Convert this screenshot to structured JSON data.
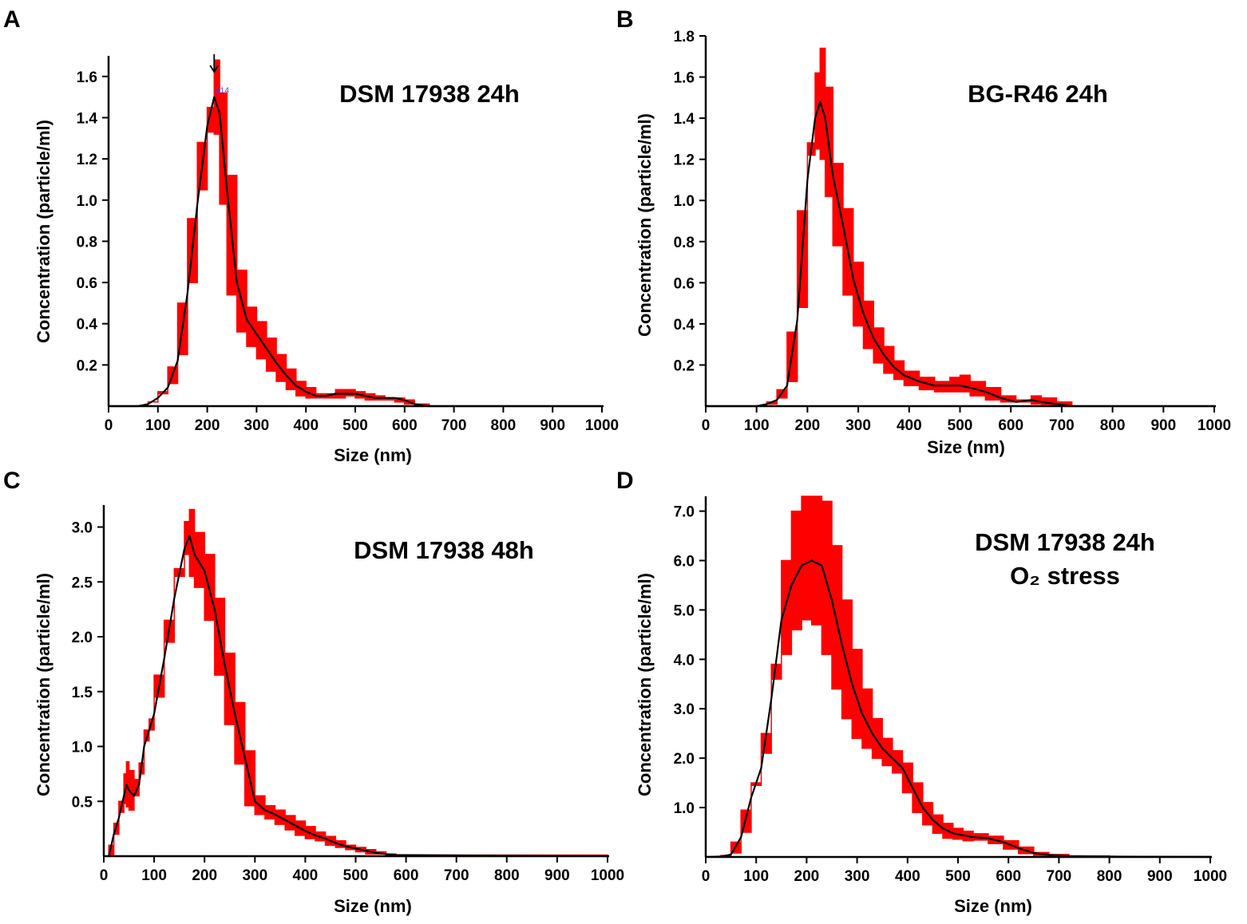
{
  "chart_data": [
    {
      "panel": "A",
      "type": "area",
      "title": "DSM 17938 24h",
      "title_sub": "",
      "xlabel": "Size (nm)",
      "ylabel": "Concentration (particle/ml)",
      "xlim": [
        0,
        1000
      ],
      "ylim": [
        0,
        1.7
      ],
      "xticks": [
        0,
        100,
        200,
        300,
        400,
        500,
        600,
        700,
        800,
        900,
        1000
      ],
      "yticks": [
        0.2,
        0.4,
        0.6,
        0.8,
        1.0,
        1.2,
        1.4,
        1.6
      ],
      "ytick_labels": [
        "0.2",
        "0.4",
        "0.6",
        "0.8",
        "1.0",
        "1.2",
        "1.4",
        "1.6"
      ],
      "peak_annotation": "214",
      "peak_x": 214,
      "series": [
        {
          "name": "mean",
          "x": [
            0,
            60,
            80,
            100,
            120,
            140,
            160,
            180,
            200,
            214,
            225,
            240,
            260,
            280,
            300,
            320,
            340,
            360,
            380,
            400,
            420,
            440,
            460,
            480,
            500,
            520,
            540,
            560,
            580,
            600,
            620,
            650,
            1000
          ],
          "y": [
            0,
            0,
            0.01,
            0.04,
            0.09,
            0.22,
            0.55,
            0.98,
            1.36,
            1.5,
            1.42,
            1.05,
            0.6,
            0.42,
            0.35,
            0.28,
            0.21,
            0.15,
            0.1,
            0.07,
            0.05,
            0.05,
            0.06,
            0.06,
            0.06,
            0.05,
            0.04,
            0.04,
            0.04,
            0.03,
            0.01,
            0,
            0
          ]
        },
        {
          "name": "error-upper",
          "x": [
            0,
            60,
            80,
            100,
            120,
            140,
            160,
            180,
            200,
            214,
            225,
            240,
            260,
            280,
            300,
            320,
            340,
            360,
            380,
            400,
            420,
            440,
            460,
            480,
            500,
            520,
            540,
            560,
            580,
            600,
            620,
            650,
            1000
          ],
          "y": [
            0,
            0,
            0.02,
            0.06,
            0.11,
            0.25,
            0.6,
            1.05,
            1.45,
            1.68,
            1.52,
            1.12,
            0.66,
            0.48,
            0.41,
            0.33,
            0.25,
            0.18,
            0.12,
            0.09,
            0.06,
            0.06,
            0.08,
            0.08,
            0.07,
            0.06,
            0.05,
            0.04,
            0.04,
            0.03,
            0.01,
            0,
            0
          ]
        },
        {
          "name": "error-lower",
          "x": [
            0,
            60,
            80,
            100,
            120,
            140,
            160,
            180,
            200,
            214,
            225,
            240,
            260,
            280,
            300,
            320,
            340,
            360,
            380,
            400,
            420,
            440,
            460,
            480,
            500,
            520,
            540,
            560,
            580,
            600,
            620,
            650,
            1000
          ],
          "y": [
            0,
            0,
            0,
            0.02,
            0.07,
            0.19,
            0.5,
            0.91,
            1.28,
            1.33,
            1.32,
            0.98,
            0.54,
            0.36,
            0.29,
            0.23,
            0.17,
            0.12,
            0.08,
            0.05,
            0.04,
            0.04,
            0.04,
            0.04,
            0.05,
            0.04,
            0.03,
            0.03,
            0.03,
            0.02,
            0.01,
            0,
            0
          ]
        }
      ]
    },
    {
      "panel": "B",
      "type": "area",
      "title": "BG-R46 24h",
      "title_sub": "",
      "xlabel": "Size (nm)",
      "ylabel": "Concentration (particle/ml)",
      "xlim": [
        0,
        1000
      ],
      "ylim": [
        0,
        1.8
      ],
      "xticks": [
        0,
        100,
        200,
        300,
        400,
        500,
        600,
        700,
        800,
        900,
        1000
      ],
      "yticks": [
        0.2,
        0.4,
        0.6,
        0.8,
        1.0,
        1.2,
        1.4,
        1.6,
        1.8
      ],
      "ytick_labels": [
        "0.2",
        "0.4",
        "0.6",
        "0.8",
        "1.0",
        "1.2",
        "1.4",
        "1.6",
        "1.8"
      ],
      "series": [
        {
          "name": "mean",
          "x": [
            0,
            100,
            120,
            140,
            160,
            180,
            200,
            215,
            225,
            235,
            250,
            270,
            290,
            310,
            330,
            350,
            370,
            390,
            420,
            450,
            480,
            500,
            520,
            550,
            580,
            610,
            640,
            660,
            690,
            720,
            1000
          ],
          "y": [
            0,
            0,
            0.01,
            0.03,
            0.1,
            0.42,
            1.1,
            1.4,
            1.48,
            1.4,
            1.12,
            0.88,
            0.62,
            0.45,
            0.33,
            0.25,
            0.19,
            0.15,
            0.12,
            0.1,
            0.1,
            0.1,
            0.09,
            0.07,
            0.04,
            0.02,
            0.03,
            0.02,
            0.01,
            0,
            0
          ]
        },
        {
          "name": "error-upper",
          "x": [
            0,
            100,
            120,
            140,
            160,
            180,
            200,
            215,
            225,
            235,
            250,
            270,
            290,
            310,
            330,
            350,
            370,
            390,
            420,
            450,
            480,
            500,
            520,
            550,
            580,
            610,
            640,
            660,
            690,
            720,
            1000
          ],
          "y": [
            0,
            0,
            0.01,
            0.04,
            0.12,
            0.48,
            1.28,
            1.62,
            1.74,
            1.55,
            1.18,
            0.96,
            0.7,
            0.51,
            0.38,
            0.29,
            0.22,
            0.17,
            0.14,
            0.12,
            0.14,
            0.15,
            0.12,
            0.09,
            0.05,
            0.03,
            0.05,
            0.04,
            0.02,
            0,
            0
          ]
        },
        {
          "name": "error-lower",
          "x": [
            0,
            100,
            120,
            140,
            160,
            180,
            200,
            215,
            225,
            235,
            250,
            270,
            290,
            310,
            330,
            350,
            370,
            390,
            420,
            450,
            480,
            500,
            520,
            550,
            580,
            610,
            640,
            660,
            690,
            720,
            1000
          ],
          "y": [
            0,
            0,
            0,
            0.02,
            0.08,
            0.36,
            0.95,
            1.22,
            1.25,
            1.2,
            1.02,
            0.78,
            0.54,
            0.39,
            0.28,
            0.21,
            0.16,
            0.13,
            0.1,
            0.08,
            0.07,
            0.07,
            0.07,
            0.05,
            0.03,
            0.02,
            0.02,
            0.01,
            0,
            0,
            0
          ]
        }
      ]
    },
    {
      "panel": "C",
      "type": "area",
      "title": "DSM 17938 48h",
      "title_sub": "",
      "xlabel": "Size (nm)",
      "ylabel": "Concentration (particle/ml)",
      "xlim": [
        0,
        1000
      ],
      "ylim": [
        0,
        3.2
      ],
      "xticks": [
        0,
        100,
        200,
        300,
        400,
        500,
        600,
        700,
        800,
        900,
        1000
      ],
      "yticks": [
        0.5,
        1.0,
        1.5,
        2.0,
        2.5,
        3.0
      ],
      "ytick_labels": [
        "0.5",
        "1.0",
        "1.5",
        "2.0",
        "2.5",
        "3.0"
      ],
      "series": [
        {
          "name": "mean",
          "x": [
            10,
            20,
            30,
            40,
            45,
            50,
            60,
            70,
            80,
            90,
            100,
            120,
            140,
            160,
            170,
            180,
            200,
            220,
            240,
            260,
            280,
            300,
            320,
            340,
            360,
            380,
            400,
            420,
            440,
            460,
            480,
            500,
            520,
            540,
            560,
            580,
            600,
            1000
          ],
          "y": [
            0,
            0.2,
            0.35,
            0.55,
            0.65,
            0.6,
            0.55,
            0.65,
            1.0,
            1.15,
            1.3,
            1.8,
            2.35,
            2.8,
            2.92,
            2.75,
            2.6,
            2.25,
            1.75,
            1.3,
            0.9,
            0.5,
            0.42,
            0.38,
            0.33,
            0.28,
            0.23,
            0.19,
            0.16,
            0.12,
            0.09,
            0.07,
            0.05,
            0.03,
            0.02,
            0.01,
            0.01,
            0
          ]
        },
        {
          "name": "error-upper",
          "x": [
            10,
            20,
            30,
            40,
            45,
            50,
            60,
            70,
            80,
            90,
            100,
            120,
            140,
            160,
            170,
            180,
            200,
            220,
            240,
            260,
            280,
            300,
            320,
            340,
            360,
            380,
            400,
            420,
            440,
            460,
            480,
            500,
            520,
            540,
            560,
            580,
            600,
            1000
          ],
          "y": [
            0,
            0.3,
            0.5,
            0.75,
            0.86,
            0.78,
            0.7,
            0.75,
            1.15,
            1.25,
            1.45,
            1.95,
            2.55,
            3.05,
            3.16,
            2.95,
            2.75,
            2.35,
            1.85,
            1.4,
            0.96,
            0.55,
            0.46,
            0.42,
            0.37,
            0.32,
            0.27,
            0.22,
            0.18,
            0.14,
            0.1,
            0.08,
            0.06,
            0.04,
            0.02,
            0.01,
            0.01,
            0
          ]
        },
        {
          "name": "error-lower",
          "x": [
            10,
            20,
            30,
            40,
            45,
            50,
            60,
            70,
            80,
            90,
            100,
            120,
            140,
            160,
            170,
            180,
            200,
            220,
            240,
            260,
            280,
            300,
            320,
            340,
            360,
            380,
            400,
            420,
            440,
            460,
            480,
            500,
            520,
            540,
            560,
            580,
            600,
            1000
          ],
          "y": [
            0,
            0.1,
            0.2,
            0.4,
            0.48,
            0.45,
            0.42,
            0.55,
            0.85,
            1.05,
            1.15,
            1.65,
            2.15,
            2.62,
            2.75,
            2.55,
            2.45,
            2.15,
            1.65,
            1.2,
            0.84,
            0.46,
            0.38,
            0.34,
            0.29,
            0.24,
            0.19,
            0.16,
            0.14,
            0.1,
            0.08,
            0.06,
            0.04,
            0.02,
            0.02,
            0.01,
            0.01,
            0
          ]
        }
      ]
    },
    {
      "panel": "D",
      "type": "area",
      "title": "DSM 17938 24h",
      "title_sub": "O₂ stress",
      "xlabel": "Size (nm)",
      "ylabel": "Concentration (particle/ml)",
      "xlim": [
        0,
        1000
      ],
      "ylim": [
        0,
        7.3
      ],
      "xticks": [
        0,
        100,
        200,
        300,
        400,
        500,
        600,
        700,
        800,
        900,
        1000
      ],
      "yticks": [
        1.0,
        2.0,
        3.0,
        4.0,
        5.0,
        6.0,
        7.0
      ],
      "ytick_labels": [
        "1.0",
        "2.0",
        "3.0",
        "4.0",
        "5.0",
        "6.0",
        "7.0"
      ],
      "series": [
        {
          "name": "mean",
          "x": [
            0,
            30,
            50,
            70,
            90,
            110,
            130,
            150,
            170,
            190,
            210,
            230,
            250,
            270,
            290,
            310,
            330,
            350,
            370,
            390,
            410,
            430,
            450,
            470,
            490,
            510,
            530,
            560,
            590,
            620,
            650,
            680,
            720,
            800,
            1000
          ],
          "y": [
            0,
            0.01,
            0.05,
            0.4,
            1.2,
            1.8,
            3.2,
            4.8,
            5.5,
            5.9,
            6.0,
            5.9,
            5.2,
            4.3,
            3.5,
            2.9,
            2.5,
            2.2,
            2.0,
            1.8,
            1.4,
            1.0,
            0.75,
            0.58,
            0.48,
            0.44,
            0.4,
            0.38,
            0.3,
            0.18,
            0.08,
            0.04,
            0.02,
            0.01,
            0
          ]
        },
        {
          "name": "error-upper",
          "x": [
            0,
            30,
            50,
            70,
            90,
            110,
            130,
            150,
            170,
            190,
            210,
            230,
            250,
            270,
            290,
            310,
            330,
            350,
            370,
            390,
            410,
            430,
            450,
            470,
            490,
            510,
            530,
            560,
            590,
            620,
            650,
            680,
            720,
            800,
            1000
          ],
          "y": [
            0,
            0.01,
            0.08,
            0.5,
            1.45,
            2.1,
            3.9,
            6.0,
            7.0,
            7.3,
            7.3,
            7.2,
            6.3,
            5.2,
            4.2,
            3.4,
            2.8,
            2.4,
            2.15,
            1.9,
            1.5,
            1.1,
            0.85,
            0.68,
            0.58,
            0.52,
            0.47,
            0.42,
            0.33,
            0.2,
            0.09,
            0.05,
            0.02,
            0.01,
            0
          ]
        },
        {
          "name": "error-lower",
          "x": [
            0,
            30,
            50,
            70,
            90,
            110,
            130,
            150,
            170,
            190,
            210,
            230,
            250,
            270,
            290,
            310,
            330,
            350,
            370,
            390,
            410,
            430,
            450,
            470,
            490,
            510,
            530,
            560,
            590,
            620,
            650,
            680,
            720,
            800,
            1000
          ],
          "y": [
            0,
            0,
            0.03,
            0.3,
            0.95,
            1.5,
            2.5,
            3.6,
            4.1,
            4.6,
            4.8,
            4.7,
            4.1,
            3.4,
            2.8,
            2.4,
            2.2,
            2.0,
            1.85,
            1.7,
            1.3,
            0.9,
            0.65,
            0.48,
            0.38,
            0.36,
            0.33,
            0.34,
            0.27,
            0.16,
            0.07,
            0.03,
            0.01,
            0,
            0
          ]
        }
      ]
    }
  ]
}
